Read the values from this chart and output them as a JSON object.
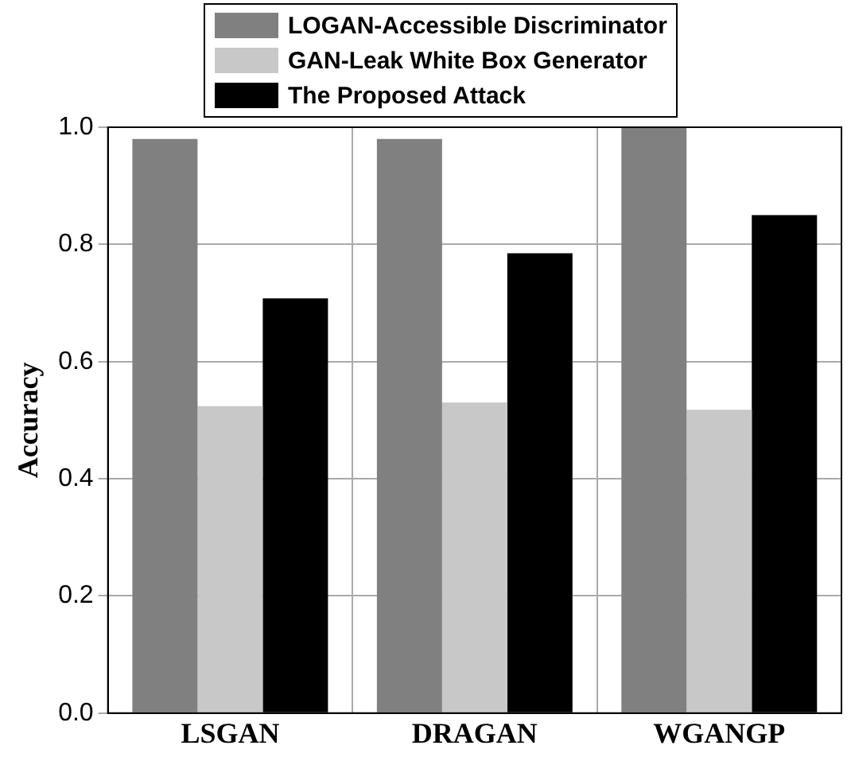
{
  "chart_data": {
    "type": "bar",
    "ylabel": "Accuracy",
    "categories": [
      "LSGAN",
      "DRAGAN",
      "WGANGP"
    ],
    "series": [
      {
        "name": "LOGAN-Accessible Discriminator",
        "color": "#808080",
        "values": [
          0.98,
          0.98,
          1.0
        ]
      },
      {
        "name": "GAN-Leak White Box Generator",
        "color": "#c8c8c8",
        "values": [
          0.524,
          0.53,
          0.518
        ]
      },
      {
        "name": "The Proposed Attack",
        "color": "#000000",
        "values": [
          0.708,
          0.785,
          0.85
        ]
      }
    ],
    "ylim": [
      0,
      1
    ],
    "yticks": [
      {
        "value": 0,
        "label": "0.0"
      },
      {
        "value": 0.2,
        "label": "0.2"
      },
      {
        "value": 0.4,
        "label": "0.4"
      },
      {
        "value": 0.6,
        "label": "0.6"
      },
      {
        "value": 0.8,
        "label": "0.8"
      },
      {
        "value": 1,
        "label": "1.0"
      }
    ],
    "grid": true,
    "legend": "top"
  }
}
